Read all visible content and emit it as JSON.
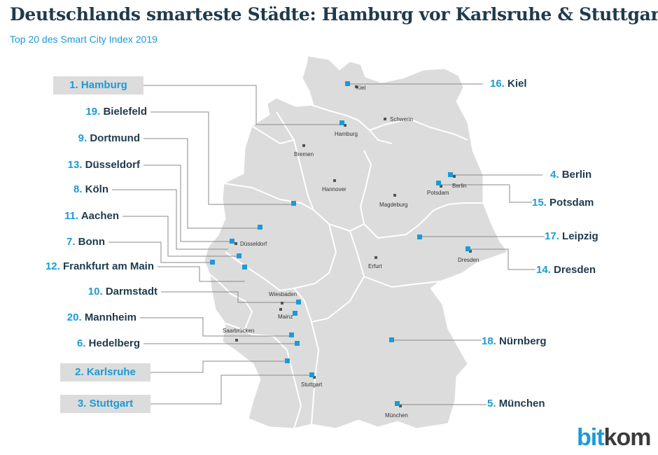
{
  "header": {
    "title": "Deutschlands smarteste Städte: Hamburg vor Karlsruhe & Stuttgart",
    "subtitle": "Top 20 des Smart City Index 2019"
  },
  "colors": {
    "accent": "#1a9bd7",
    "text_dark": "#1f3a4d",
    "map_fill": "#dcdcdc",
    "state_border": "#ffffff",
    "highlight_box": "#dcdcdc",
    "leader_line": "#888888"
  },
  "rankings": {
    "hamburg": {
      "rank": "1.",
      "name": "Hamburg"
    },
    "bielefeld": {
      "rank": "19.",
      "name": "Bielefeld"
    },
    "dortmund": {
      "rank": "9.",
      "name": "Dortmund"
    },
    "duesseldorf": {
      "rank": "13.",
      "name": "Düsseldorf"
    },
    "koeln": {
      "rank": "8.",
      "name": "Köln"
    },
    "aachen": {
      "rank": "11.",
      "name": "Aachen"
    },
    "bonn": {
      "rank": "7.",
      "name": "Bonn"
    },
    "frankfurt": {
      "rank": "12.",
      "name": "Frankfurt am Main"
    },
    "darmstadt": {
      "rank": "10.",
      "name": "Darmstadt"
    },
    "mannheim": {
      "rank": "20.",
      "name": "Mannheim"
    },
    "heidelberg": {
      "rank": "6.",
      "name": "Hedelberg"
    },
    "karlsruhe": {
      "rank": "2.",
      "name": "Karlsruhe"
    },
    "stuttgart": {
      "rank": "3.",
      "name": "Stuttgart"
    },
    "kiel": {
      "rank": "16.",
      "name": "Kiel"
    },
    "berlin": {
      "rank": "4.",
      "name": "Berlin"
    },
    "potsdam": {
      "rank": "15.",
      "name": "Potsdam"
    },
    "leipzig": {
      "rank": "17.",
      "name": "Leipzig"
    },
    "dresden": {
      "rank": "14.",
      "name": "Dresden"
    },
    "nuernberg": {
      "rank": "18.",
      "name": "Nürnberg"
    },
    "muenchen": {
      "rank": "5.",
      "name": "München"
    }
  },
  "capitals": {
    "kiel": "Kiel",
    "hamburg": "Hamburg",
    "schwerin": "Schwerin",
    "bremen": "Bremen",
    "hannover": "Hannover",
    "berlin": "Berlin",
    "potsdam": "Potsdam",
    "magdeburg": "Magdeburg",
    "duesseldorf": "Düsseldorf",
    "erfurt": "Erfurt",
    "dresden": "Dresden",
    "wiesbaden": "Wiesbaden",
    "mainz": "Mainz",
    "saarbruecken": "Saarbrücken",
    "stuttgart": "Stuttgart",
    "muenchen": "München"
  },
  "logo": {
    "part1": "bit",
    "part2": "kom"
  }
}
